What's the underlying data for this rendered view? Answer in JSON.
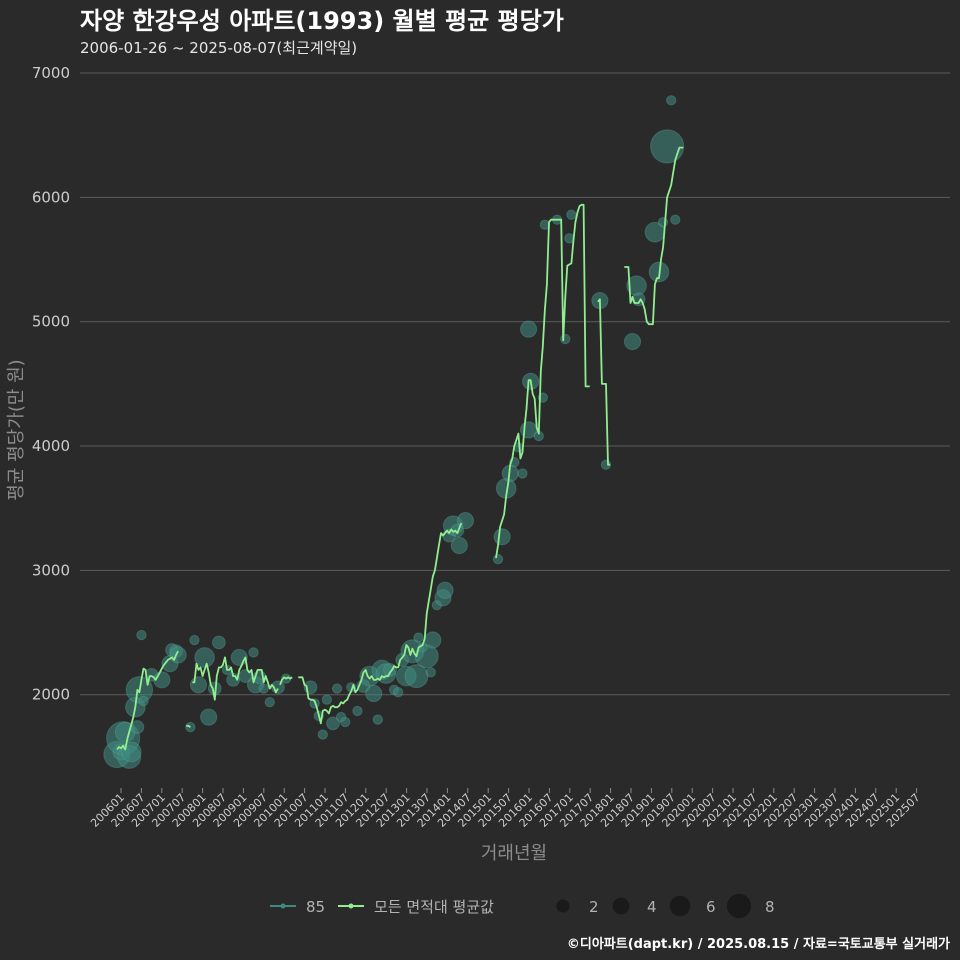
{
  "colors": {
    "background": "#2a2a2b",
    "gridline": "#5c5c5c",
    "line": "#90ee90",
    "bubble": "#3f8a7f",
    "bubble_stroke": "#63b3a6",
    "legend_circle": "#1a1a1a"
  },
  "chart_data": {
    "type": "line",
    "title": "자양 한강우성 아파트(1993) 월별 평균 평당가",
    "subtitle": "2006-01-26 ~ 2025-08-07(최근계약일)",
    "xlabel": "거래년월",
    "ylabel": "평균 평당가(만 원)",
    "ylim": [
      1250,
      7000
    ],
    "y_ticks": [
      2000,
      3000,
      4000,
      5000,
      6000,
      7000
    ],
    "y_tick_labels": [
      "2000",
      "3000",
      "4000",
      "5000",
      "6000",
      "7000"
    ],
    "x_tick_labels": [
      "200601",
      "200607",
      "200701",
      "200707",
      "200801",
      "200807",
      "200901",
      "200907",
      "201001",
      "201007",
      "201101",
      "201107",
      "201201",
      "201207",
      "201301",
      "201307",
      "201401",
      "201407",
      "201501",
      "201507",
      "201601",
      "201607",
      "201701",
      "201707",
      "201801",
      "201807",
      "201901",
      "201907",
      "202001",
      "202007",
      "202101",
      "202107",
      "202201",
      "202207",
      "202301",
      "202307",
      "202401",
      "202407",
      "202501",
      "202507"
    ],
    "line_segments": [
      {
        "t": [
          0,
          1,
          2,
          3,
          4,
          5,
          6,
          7,
          8,
          9,
          10,
          11,
          12,
          13,
          14,
          15,
          16,
          17,
          18,
          19,
          20,
          21,
          22,
          23,
          24,
          25,
          26,
          27,
          28,
          29,
          30
        ],
        "v": [
          1560,
          1580,
          1570,
          1590,
          1560,
          1640,
          1700,
          1760,
          1820,
          1900,
          2040,
          2020,
          2120,
          2210,
          2200,
          2080,
          2150,
          2150,
          2140,
          2120,
          2150,
          2180,
          2210,
          2240,
          2260,
          2280,
          2290,
          2300,
          2280,
          2320,
          2350
        ]
      },
      {
        "t": [
          34,
          35,
          36
        ],
        "v": [
          1750,
          1750,
          1740
        ]
      },
      {
        "t": [
          37,
          38,
          39,
          40,
          41,
          42,
          43,
          44,
          45,
          46,
          47,
          48,
          49,
          50,
          51,
          52,
          53,
          54,
          55,
          56,
          57,
          58,
          59,
          60,
          61,
          62,
          63,
          64,
          65,
          66,
          67,
          68,
          69,
          70,
          71,
          72,
          73,
          74,
          75,
          76,
          77,
          78,
          79
        ],
        "v": [
          2100,
          2100,
          2250,
          2200,
          2220,
          2150,
          2200,
          2250,
          2180,
          2080,
          2050,
          1960,
          2150,
          2220,
          2220,
          2240,
          2300,
          2200,
          2200,
          2220,
          2150,
          2150,
          2120,
          2200,
          2230,
          2270,
          2300,
          2200,
          2180,
          2200,
          2100,
          2150,
          2200,
          2200,
          2200,
          2100,
          2150,
          2100,
          2050,
          2080,
          2060,
          2020,
          2050
        ]
      },
      {
        "t": [
          80,
          81,
          82,
          83,
          84,
          85,
          86
        ],
        "v": [
          2080,
          2120,
          2140,
          2130,
          2140,
          2130,
          2140
        ]
      },
      {
        "t": [
          89,
          90,
          91,
          92,
          93,
          94,
          95,
          96,
          97,
          98,
          99,
          100,
          101,
          102,
          103,
          104,
          105,
          106,
          107,
          108,
          109,
          110,
          111,
          112,
          113,
          114,
          115,
          116,
          117,
          118,
          119,
          120,
          121,
          122,
          123,
          124,
          125,
          126,
          127,
          128,
          129,
          130,
          131,
          132,
          133,
          134,
          135,
          136,
          137,
          138,
          139,
          140,
          141,
          142,
          143,
          144,
          145,
          146,
          147,
          148,
          149,
          150,
          151,
          152,
          153,
          154,
          155,
          156,
          157,
          158,
          159,
          160,
          161,
          162,
          163,
          164,
          165,
          166,
          167,
          168,
          169,
          170,
          171,
          172,
          173,
          174,
          175,
          176,
          177,
          178,
          179,
          180
        ],
        "v": [
          2140,
          2140,
          2140,
          2080,
          2070,
          1970,
          1960,
          1960,
          1950,
          1900,
          1840,
          1770,
          1870,
          1880,
          1870,
          1850,
          1900,
          1910,
          1900,
          1900,
          1910,
          1940,
          1930,
          1950,
          1960,
          2000,
          2030,
          2080,
          2020,
          2040,
          2080,
          2120,
          2180,
          2200,
          2150,
          2130,
          2150,
          2120,
          2120,
          2130,
          2120,
          2150,
          2140,
          2150,
          2150,
          2180,
          2200,
          2230,
          2220,
          2220,
          2280,
          2300,
          2320,
          2400,
          2380,
          2320,
          2370,
          2330,
          2310,
          2380,
          2390,
          2400,
          2450,
          2650,
          2750,
          2850,
          2950,
          3000,
          3100,
          3200,
          3300,
          3280,
          3300,
          3320,
          3300,
          3330,
          3310,
          3320,
          3300,
          3340,
          3380
        ]
      },
      {
        "t": [
          186,
          187,
          188,
          189,
          190,
          191,
          192,
          193,
          194,
          195,
          196,
          197,
          198,
          199,
          200,
          201,
          202,
          203,
          204,
          205,
          206,
          207,
          208,
          209,
          210,
          211,
          212,
          213,
          214,
          215,
          216,
          217,
          218,
          219,
          220,
          221,
          222,
          223,
          224,
          225,
          226,
          227,
          228,
          229,
          230,
          231,
          232
        ],
        "v": [
          3100,
          3200,
          3350,
          3400,
          3450,
          3600,
          3700,
          3850,
          3900,
          4000,
          4050,
          4100,
          3900,
          3950,
          4150,
          4300,
          4530,
          4530,
          4420,
          4380,
          4150,
          4100,
          4600,
          4800,
          5100,
          5300,
          5800,
          5820,
          5820,
          5820,
          5820,
          5820,
          5820,
          4850,
          5200,
          5450,
          5460,
          5470,
          5650,
          5800,
          5880,
          5930,
          5940,
          5940,
          4480,
          4480,
          4480
        ]
      },
      {
        "t": [
          236,
          237,
          238,
          239,
          240,
          241,
          242
        ],
        "v": [
          5160,
          5180,
          4500,
          4500,
          4500,
          3850,
          3850
        ]
      },
      {
        "t": [
          249,
          250,
          251,
          252,
          253,
          254,
          255,
          256,
          257,
          258,
          259,
          260,
          261,
          262,
          263,
          264,
          265,
          266,
          267,
          268,
          269,
          270,
          271,
          272,
          273,
          274,
          275,
          276,
          277,
          278
        ],
        "v": [
          5440,
          5440,
          5440,
          5150,
          5200,
          5150,
          5150,
          5150,
          5180,
          5150,
          5100,
          5000,
          4980,
          4980,
          4980,
          5300,
          5350,
          5350,
          5500,
          5600,
          5800,
          6000,
          6050,
          6100,
          6200,
          6300,
          6350,
          6400,
          6400,
          6400
        ]
      }
    ],
    "bubbles": [
      {
        "t": 0,
        "v": 1520,
        "n": 6
      },
      {
        "t": 2,
        "v": 1540,
        "n": 3
      },
      {
        "t": 3,
        "v": 1650,
        "n": 8
      },
      {
        "t": 4,
        "v": 1700,
        "n": 4
      },
      {
        "t": 6,
        "v": 1500,
        "n": 5
      },
      {
        "t": 7,
        "v": 1540,
        "n": 4
      },
      {
        "t": 9,
        "v": 1900,
        "n": 4
      },
      {
        "t": 10,
        "v": 1740,
        "n": 2
      },
      {
        "t": 11,
        "v": 2040,
        "n": 6
      },
      {
        "t": 13,
        "v": 1950,
        "n": 1
      },
      {
        "t": 12,
        "v": 2480,
        "n": 1
      },
      {
        "t": 17,
        "v": 2160,
        "n": 2
      },
      {
        "t": 22,
        "v": 2120,
        "n": 3
      },
      {
        "t": 26,
        "v": 2250,
        "n": 3
      },
      {
        "t": 27,
        "v": 2360,
        "n": 2
      },
      {
        "t": 29,
        "v": 2350,
        "n": 2
      },
      {
        "t": 30,
        "v": 2320,
        "n": 3
      },
      {
        "t": 36,
        "v": 1740,
        "n": 1
      },
      {
        "t": 38,
        "v": 2440,
        "n": 1
      },
      {
        "t": 40,
        "v": 2080,
        "n": 3
      },
      {
        "t": 43,
        "v": 2300,
        "n": 4
      },
      {
        "t": 45,
        "v": 1820,
        "n": 3
      },
      {
        "t": 48,
        "v": 2050,
        "n": 2
      },
      {
        "t": 50,
        "v": 2420,
        "n": 2
      },
      {
        "t": 54,
        "v": 2200,
        "n": 1
      },
      {
        "t": 57,
        "v": 2120,
        "n": 2
      },
      {
        "t": 60,
        "v": 2300,
        "n": 3
      },
      {
        "t": 63,
        "v": 2150,
        "n": 2
      },
      {
        "t": 67,
        "v": 2340,
        "n": 1
      },
      {
        "t": 68,
        "v": 2080,
        "n": 3
      },
      {
        "t": 70,
        "v": 2140,
        "n": 2
      },
      {
        "t": 72,
        "v": 2050,
        "n": 1
      },
      {
        "t": 75,
        "v": 1940,
        "n": 1
      },
      {
        "t": 79,
        "v": 2060,
        "n": 2
      },
      {
        "t": 83,
        "v": 2130,
        "n": 1
      },
      {
        "t": 95,
        "v": 2060,
        "n": 2
      },
      {
        "t": 97,
        "v": 1930,
        "n": 1
      },
      {
        "t": 99,
        "v": 1830,
        "n": 1
      },
      {
        "t": 101,
        "v": 1680,
        "n": 1
      },
      {
        "t": 103,
        "v": 1960,
        "n": 1
      },
      {
        "t": 106,
        "v": 1770,
        "n": 2
      },
      {
        "t": 108,
        "v": 2050,
        "n": 1
      },
      {
        "t": 110,
        "v": 1820,
        "n": 1
      },
      {
        "t": 112,
        "v": 1780,
        "n": 1
      },
      {
        "t": 115,
        "v": 2060,
        "n": 1
      },
      {
        "t": 118,
        "v": 1870,
        "n": 1
      },
      {
        "t": 121,
        "v": 2070,
        "n": 2
      },
      {
        "t": 124,
        "v": 2150,
        "n": 4
      },
      {
        "t": 126,
        "v": 2010,
        "n": 3
      },
      {
        "t": 128,
        "v": 1800,
        "n": 1
      },
      {
        "t": 130,
        "v": 2200,
        "n": 4
      },
      {
        "t": 132,
        "v": 2170,
        "n": 4
      },
      {
        "t": 134,
        "v": 2200,
        "n": 2
      },
      {
        "t": 136,
        "v": 2040,
        "n": 1
      },
      {
        "t": 138,
        "v": 2020,
        "n": 1
      },
      {
        "t": 140,
        "v": 2280,
        "n": 2
      },
      {
        "t": 142,
        "v": 2150,
        "n": 4
      },
      {
        "t": 145,
        "v": 2350,
        "n": 5
      },
      {
        "t": 147,
        "v": 2150,
        "n": 5
      },
      {
        "t": 148,
        "v": 2460,
        "n": 1
      },
      {
        "t": 150,
        "v": 2380,
        "n": 1
      },
      {
        "t": 152,
        "v": 2310,
        "n": 5
      },
      {
        "t": 154,
        "v": 2180,
        "n": 1
      },
      {
        "t": 155,
        "v": 2440,
        "n": 3
      },
      {
        "t": 157,
        "v": 2720,
        "n": 1
      },
      {
        "t": 160,
        "v": 2780,
        "n": 3
      },
      {
        "t": 161,
        "v": 2840,
        "n": 3
      },
      {
        "t": 163,
        "v": 3280,
        "n": 2
      },
      {
        "t": 165,
        "v": 3360,
        "n": 4
      },
      {
        "t": 167,
        "v": 3320,
        "n": 2
      },
      {
        "t": 168,
        "v": 3200,
        "n": 3
      },
      {
        "t": 171,
        "v": 3400,
        "n": 3
      },
      {
        "t": 187,
        "v": 3090,
        "n": 1
      },
      {
        "t": 189,
        "v": 3270,
        "n": 3
      },
      {
        "t": 191,
        "v": 3660,
        "n": 4
      },
      {
        "t": 193,
        "v": 3780,
        "n": 3
      },
      {
        "t": 195,
        "v": 3870,
        "n": 1
      },
      {
        "t": 197,
        "v": 3990,
        "n": 1
      },
      {
        "t": 199,
        "v": 3780,
        "n": 1
      },
      {
        "t": 202,
        "v": 4130,
        "n": 3
      },
      {
        "t": 203,
        "v": 4520,
        "n": 3
      },
      {
        "t": 207,
        "v": 4080,
        "n": 1
      },
      {
        "t": 209,
        "v": 4390,
        "n": 1
      },
      {
        "t": 202,
        "v": 4940,
        "n": 3
      },
      {
        "t": 210,
        "v": 5780,
        "n": 1
      },
      {
        "t": 216,
        "v": 5820,
        "n": 1
      },
      {
        "t": 220,
        "v": 4860,
        "n": 1
      },
      {
        "t": 222,
        "v": 5670,
        "n": 1
      },
      {
        "t": 223,
        "v": 5860,
        "n": 1
      },
      {
        "t": 237,
        "v": 5170,
        "n": 3
      },
      {
        "t": 240,
        "v": 3850,
        "n": 1
      },
      {
        "t": 253,
        "v": 4840,
        "n": 3
      },
      {
        "t": 255,
        "v": 5290,
        "n": 4
      },
      {
        "t": 256,
        "v": 5180,
        "n": 2
      },
      {
        "t": 264,
        "v": 5720,
        "n": 4
      },
      {
        "t": 266,
        "v": 5400,
        "n": 4
      },
      {
        "t": 268,
        "v": 5800,
        "n": 1
      },
      {
        "t": 270,
        "v": 6410,
        "n": 8
      },
      {
        "t": 272,
        "v": 6780,
        "n": 1
      },
      {
        "t": 274,
        "v": 5820,
        "n": 1
      }
    ],
    "legend": {
      "series": [
        {
          "label": "85",
          "kind": "bubble"
        },
        {
          "label": "모든 면적대 평균값",
          "kind": "line"
        }
      ],
      "sizes": [
        {
          "label": "2",
          "n": 2
        },
        {
          "label": "4",
          "n": 4
        },
        {
          "label": "6",
          "n": 6
        },
        {
          "label": "8",
          "n": 8
        }
      ]
    }
  },
  "footer": "©디아파트(dapt.kr) / 2025.08.15 / 자료=국토교통부 실거래가"
}
